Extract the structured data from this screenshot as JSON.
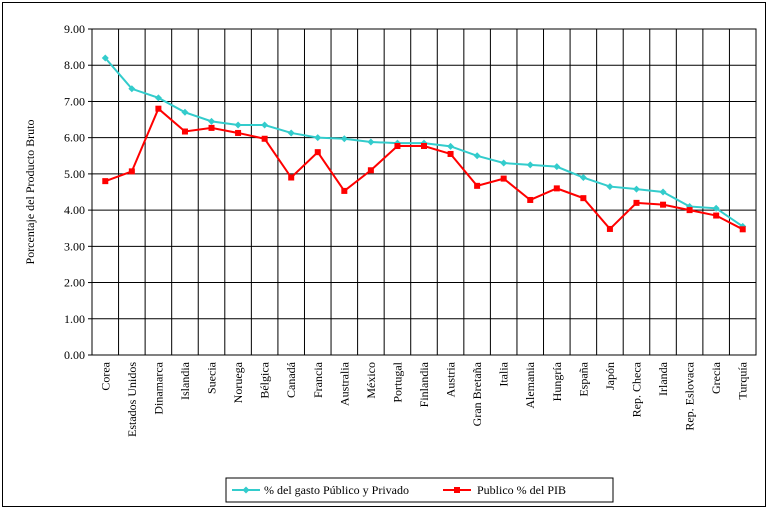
{
  "chart_data": {
    "type": "line",
    "title": "",
    "xlabel": "",
    "ylabel": "Porcentaje del Producto Bruto",
    "ylim": [
      0,
      9
    ],
    "yticks": [
      "0.00",
      "1.00",
      "2.00",
      "3.00",
      "4.00",
      "5.00",
      "6.00",
      "7.00",
      "8.00",
      "9.00"
    ],
    "grid": true,
    "legend_position": "bottom",
    "categories": [
      "Corea",
      "Estados Unidos",
      "Dinamarca",
      "Islandia",
      "Suecia",
      "Noruega",
      "Bélgica",
      "Canadá",
      "Francia",
      "Australia",
      "México",
      "Portugal",
      "Finlandia",
      "Austria",
      "Gran Bretaña",
      "Italia",
      "Alemania",
      "Hungría",
      "España",
      "Japón",
      "Rep. Checa",
      "Irlanda",
      "Rep. Eslovaca",
      "Grecia",
      "Turquía"
    ],
    "series": [
      {
        "name": "% del gasto Público y Privado",
        "color": "#33cccc",
        "marker": "diamond",
        "values": [
          8.2,
          7.35,
          7.1,
          6.7,
          6.45,
          6.35,
          6.35,
          6.13,
          6.0,
          5.97,
          5.88,
          5.85,
          5.85,
          5.76,
          5.5,
          5.3,
          5.25,
          5.2,
          4.9,
          4.65,
          4.58,
          4.5,
          4.1,
          4.05,
          3.55
        ]
      },
      {
        "name": "Publico  % del PIB",
        "color": "#ff0000",
        "marker": "square",
        "values": [
          4.8,
          5.07,
          6.8,
          6.17,
          6.27,
          6.13,
          5.97,
          4.9,
          5.6,
          4.53,
          5.1,
          5.77,
          5.77,
          5.55,
          4.67,
          4.87,
          4.28,
          4.6,
          4.33,
          3.48,
          4.2,
          4.15,
          4.0,
          3.85,
          3.47
        ]
      }
    ]
  }
}
